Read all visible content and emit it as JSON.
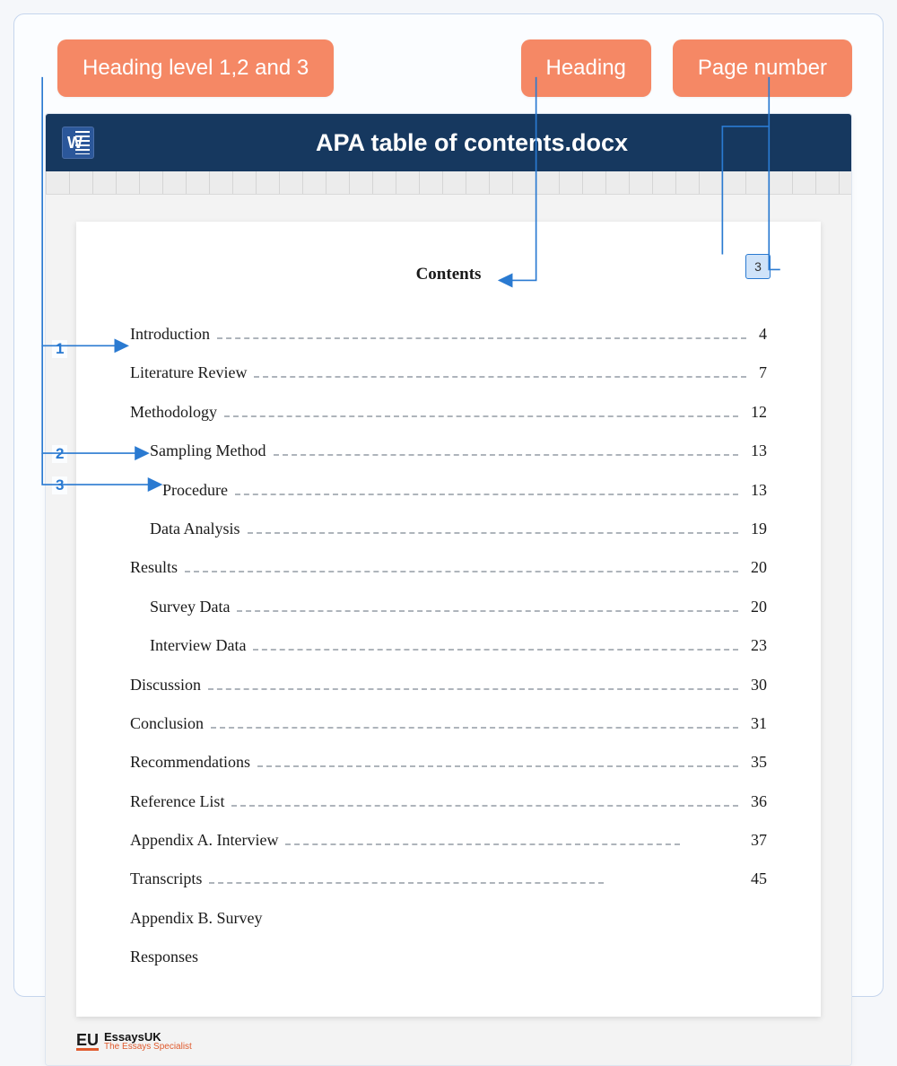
{
  "callouts": {
    "levels": "Heading level 1,2 and 3",
    "heading": "Heading",
    "page": "Page number"
  },
  "window": {
    "app_letter": "W",
    "title": "APA table of contents.docx"
  },
  "document": {
    "page_number": "3",
    "heading": "Contents",
    "toc": [
      {
        "label": "Introduction",
        "page": "4",
        "level": 1
      },
      {
        "label": "Literature Review",
        "page": "7",
        "level": 1
      },
      {
        "label": "Methodology",
        "page": "12",
        "level": 1
      },
      {
        "label": "Sampling Method",
        "page": "13",
        "level": 2
      },
      {
        "label": "Procedure",
        "page": "13",
        "level": 3
      },
      {
        "label": "Data Analysis",
        "page": "19",
        "level": 2
      },
      {
        "label": "Results",
        "page": "20",
        "level": 1
      },
      {
        "label": "Survey Data",
        "page": "20",
        "level": 2
      },
      {
        "label": "Interview Data",
        "page": "23",
        "level": 2
      },
      {
        "label": "Discussion",
        "page": "30",
        "level": 1
      },
      {
        "label": "Conclusion",
        "page": "31",
        "level": 1
      },
      {
        "label": "Recommendations",
        "page": "35",
        "level": 1
      },
      {
        "label": "Reference List",
        "page": "36",
        "level": 1
      },
      {
        "label": "Appendix A. Interview",
        "page": "37",
        "level": 1,
        "short_dots": true
      },
      {
        "label": "Transcripts",
        "page": "45",
        "level": 1,
        "short_dots": true
      },
      {
        "label": "Appendix B. Survey",
        "page": "",
        "level": 1,
        "no_page": true
      },
      {
        "label": "Responses",
        "page": "",
        "level": 1,
        "no_page": true
      }
    ]
  },
  "brand": {
    "mark": "EU",
    "name": "EssaysUK",
    "sub": "The Essays Specialist"
  },
  "level_markers": {
    "l1": "1",
    "l2": "2",
    "l3": "3"
  },
  "colors": {
    "callout_bg": "#f58865",
    "titlebar_bg": "#16385f",
    "word_icon_bg": "#2b579a",
    "annotation_line": "#2a7ad1",
    "page_number_bg": "#cfe3f9",
    "dots": "#aeb4bb",
    "brand_accent": "#e05a2d",
    "outer_border": "#c5d5ed"
  },
  "typography": {
    "callout_fontsize_pt": 18,
    "titlebar_fontsize_pt": 20,
    "doc_font_family": "Times New Roman",
    "doc_body_fontsize_pt": 13,
    "doc_heading_weight": 700
  }
}
